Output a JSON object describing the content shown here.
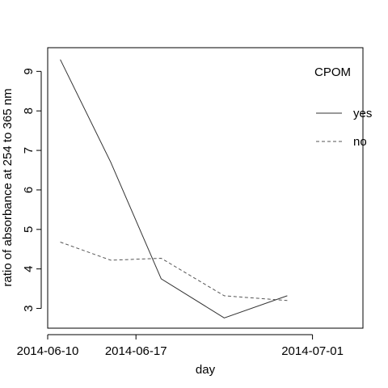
{
  "chart_data": {
    "type": "line",
    "xlabel": "day",
    "ylabel": "ratio of absorbance at 254 to 365 nm",
    "x_ticks": [
      "2014-06-10",
      "2014-06-17",
      "2014-07-01"
    ],
    "xlim": [
      "2014-06-10",
      "2014-07-05"
    ],
    "ylim": [
      2.5,
      9.6
    ],
    "y_ticks": [
      3,
      4,
      5,
      6,
      7,
      8,
      9
    ],
    "grid": false,
    "legend": {
      "title": "CPOM",
      "placement": "top-right"
    },
    "series": [
      {
        "name": "yes",
        "line_style": "solid",
        "points": [
          {
            "x": "2014-06-11",
            "y": 9.3
          },
          {
            "x": "2014-06-15",
            "y": 6.7
          },
          {
            "x": "2014-06-19",
            "y": 3.75
          },
          {
            "x": "2014-06-24",
            "y": 2.76
          },
          {
            "x": "2014-06-29",
            "y": 3.32
          }
        ]
      },
      {
        "name": "no",
        "line_style": "dashed",
        "points": [
          {
            "x": "2014-06-11",
            "y": 4.68
          },
          {
            "x": "2014-06-15",
            "y": 4.22
          },
          {
            "x": "2014-06-19",
            "y": 4.27
          },
          {
            "x": "2014-06-24",
            "y": 3.32
          },
          {
            "x": "2014-06-29",
            "y": 3.2
          }
        ]
      }
    ]
  }
}
